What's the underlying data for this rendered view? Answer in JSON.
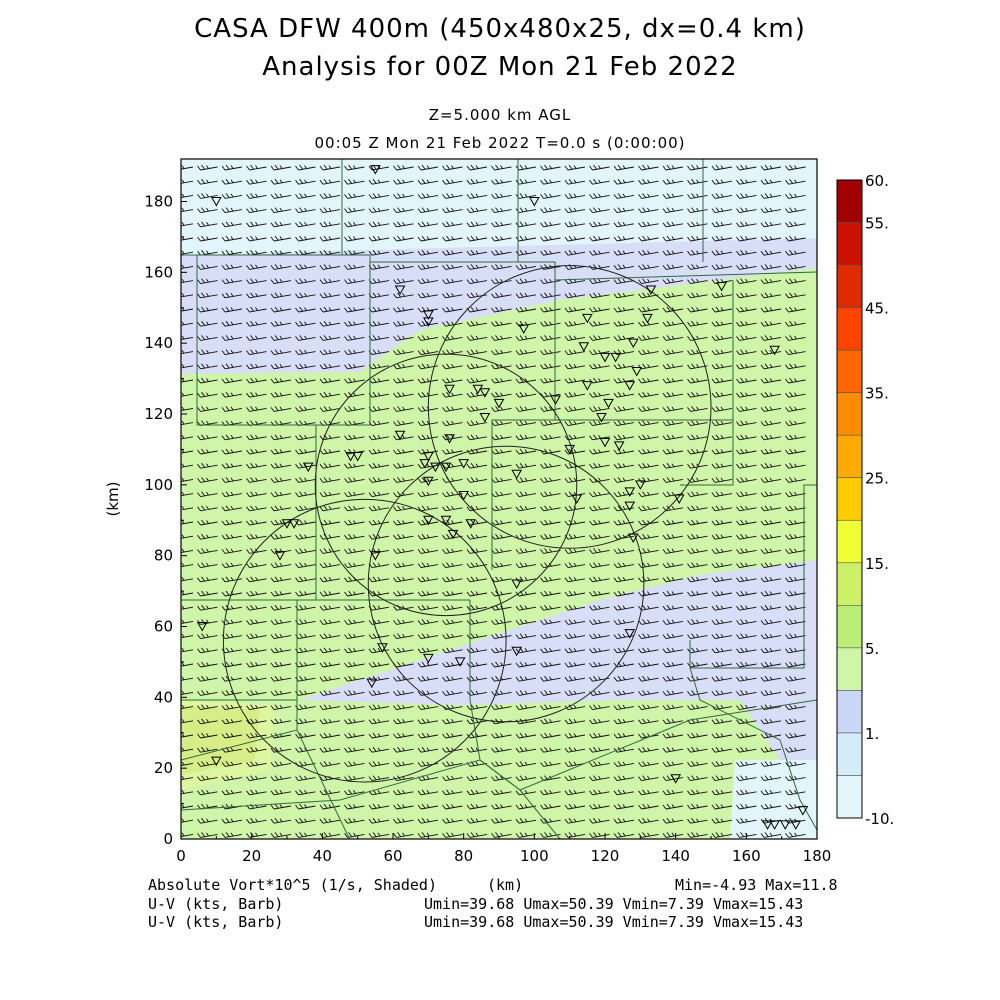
{
  "titles": {
    "line1": "CASA DFW 400m (450x480x25, dx=0.4 km)",
    "line2": "Analysis for 00Z Mon 21 Feb 2022",
    "level": "Z=5.000 km AGL",
    "time": "00:05 Z Mon 21 Feb 2022    T=0.0 s (0:00:00)"
  },
  "footer": {
    "field": "Absolute Vort*10^5 (1/s, Shaded)",
    "xunit": "(km)",
    "minmax": "Min=-4.93 Max=11.8",
    "barb1": "U-V (kts, Barb)",
    "barb2": "U-V (kts, Barb)",
    "stats1": "Umin=39.68 Umax=50.39 Vmin=7.39 Vmax=15.43",
    "stats2": "Umin=39.68 Umax=50.39 Vmin=7.39 Vmax=15.43"
  },
  "colorbar": {
    "labels": [
      "60.",
      "55.",
      "45.",
      "35.",
      "25.",
      "15.",
      "5.",
      "1.",
      "-10."
    ],
    "colors": [
      "#a00000",
      "#cc1100",
      "#e02a00",
      "#ff4400",
      "#ff6600",
      "#ff8c00",
      "#ffaa00",
      "#ffcc00",
      "#eeff33",
      "#ccf066",
      "#bbee77",
      "#cff5a8",
      "#cad6f5",
      "#d3ecf8",
      "#e2f5fa"
    ]
  },
  "chart_data": {
    "type": "heatmap",
    "title": "CASA DFW 400m (450x480x25, dx=0.4 km)",
    "subtitle": "Analysis for 00Z Mon 21 Feb 2022",
    "xlabel": "(km)",
    "ylabel": "(km)",
    "xlim": [
      0,
      180
    ],
    "ylim": [
      0,
      192
    ],
    "xticks": [
      0,
      20,
      40,
      60,
      80,
      100,
      120,
      140,
      160,
      180
    ],
    "yticks": [
      0,
      20,
      40,
      60,
      80,
      100,
      120,
      140,
      160,
      180
    ],
    "field": "Absolute Vort*10^5 (1/s)",
    "field_min": -4.93,
    "field_max": 11.8,
    "wind": {
      "umin": 39.68,
      "umax": 50.39,
      "vmin": 7.39,
      "vmax": 15.43
    },
    "radar_rings": [
      {
        "cx": 110,
        "cy": 122,
        "r": 40
      },
      {
        "cx": 75,
        "cy": 100,
        "r": 37
      },
      {
        "cx": 92,
        "cy": 72,
        "r": 39
      },
      {
        "cx": 52,
        "cy": 56,
        "r": 40
      }
    ],
    "stations": [
      [
        55,
        189
      ],
      [
        10,
        180
      ],
      [
        100,
        180
      ],
      [
        62,
        155
      ],
      [
        70,
        148
      ],
      [
        70,
        146
      ],
      [
        97,
        144
      ],
      [
        115,
        147
      ],
      [
        133,
        155
      ],
      [
        132,
        147
      ],
      [
        128,
        140
      ],
      [
        114,
        139
      ],
      [
        120,
        136
      ],
      [
        123,
        136
      ],
      [
        129,
        132
      ],
      [
        115,
        128
      ],
      [
        127,
        128
      ],
      [
        76,
        127
      ],
      [
        84,
        127
      ],
      [
        86,
        126
      ],
      [
        90,
        123
      ],
      [
        106,
        124
      ],
      [
        121,
        123
      ],
      [
        86,
        119
      ],
      [
        119,
        119
      ],
      [
        62,
        114
      ],
      [
        76,
        113
      ],
      [
        110,
        110
      ],
      [
        120,
        112
      ],
      [
        124,
        111
      ],
      [
        48,
        108
      ],
      [
        36,
        105
      ],
      [
        70,
        108
      ],
      [
        69,
        106
      ],
      [
        72,
        105
      ],
      [
        80,
        106
      ],
      [
        75,
        105
      ],
      [
        70,
        101
      ],
      [
        95,
        103
      ],
      [
        130,
        100
      ],
      [
        127,
        98
      ],
      [
        141,
        96
      ],
      [
        80,
        97
      ],
      [
        112,
        96
      ],
      [
        127,
        94
      ],
      [
        32,
        89
      ],
      [
        30,
        89
      ],
      [
        70,
        90
      ],
      [
        75,
        90
      ],
      [
        82,
        89
      ],
      [
        77,
        86
      ],
      [
        128,
        85
      ],
      [
        28,
        80
      ],
      [
        55,
        80
      ],
      [
        95,
        72
      ],
      [
        6,
        60
      ],
      [
        127,
        58
      ],
      [
        57,
        54
      ],
      [
        70,
        51
      ],
      [
        79,
        50
      ],
      [
        95,
        53
      ],
      [
        54,
        44
      ],
      [
        10,
        22
      ],
      [
        140,
        17
      ],
      [
        168,
        4
      ],
      [
        174,
        4
      ],
      [
        176,
        8
      ],
      [
        166,
        4
      ],
      [
        171,
        4
      ],
      [
        153,
        156
      ],
      [
        168,
        138
      ],
      [
        50,
        108
      ]
    ],
    "regions": [
      {
        "level": "1 to 5 (light blue)",
        "area": "upper-left band 125-165 km, north of diagonal front"
      },
      {
        "level": "5 to 10 (light green)",
        "area": "central diagonal band"
      },
      {
        "level": "10 to 15 (green-yellow)",
        "area": "southwest corner near (5-25, 25-40)"
      },
      {
        "level": "-10 to 1 (pale)",
        "area": "top strip and southeast near (155-180, 0-25)"
      }
    ]
  }
}
